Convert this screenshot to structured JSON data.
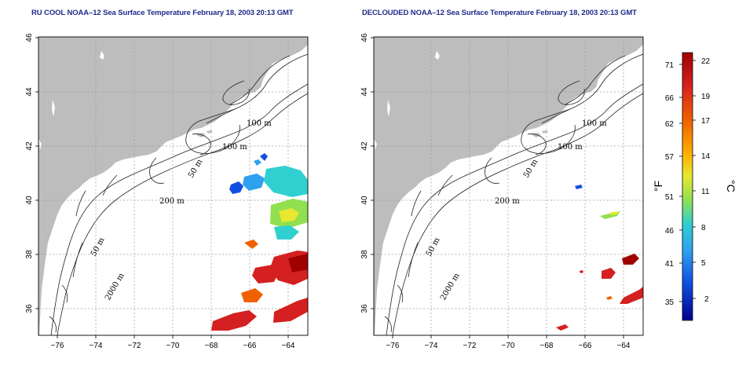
{
  "maps": [
    {
      "title": "RU COOL NOAA–12 Sea Surface Temperature February 18, 2003 20:13 GMT",
      "contour_labels": [
        "100 m",
        "100 m",
        "50 m",
        "200 m",
        "50 m",
        "2000 m"
      ]
    },
    {
      "title": "DECLOUDED NOAA–12 Sea Surface Temperature February 18, 2003 20:13 GMT",
      "contour_labels": [
        "100 m",
        "100 m",
        "50 m",
        "200 m",
        "50 m",
        "2000 m"
      ]
    }
  ],
  "axes": {
    "lon_ticks": [
      "−76",
      "−74",
      "−72",
      "−70",
      "−68",
      "−66",
      "−64"
    ],
    "lat_ticks": [
      "36",
      "38",
      "40",
      "42",
      "44",
      "46"
    ],
    "lon_range": [
      -77,
      -63
    ],
    "lat_range": [
      35,
      46
    ],
    "grid": "dotted"
  },
  "colorbar": {
    "fahrenheit_label": "°F",
    "celsius_label": "°C",
    "fahrenheit_ticks": [
      "71",
      "66",
      "62",
      "57",
      "51",
      "46",
      "41",
      "35"
    ],
    "celsius_ticks": [
      "22",
      "19",
      "17",
      "14",
      "11",
      "8",
      "5",
      "2"
    ],
    "colors": [
      "#a00000",
      "#d42020",
      "#f06000",
      "#ffb000",
      "#e8e830",
      "#90e050",
      "#30d0d0",
      "#30a0f0",
      "#1050e0",
      "#000090"
    ]
  },
  "colors": {
    "land": "#bdbdbd",
    "title": "#1f2a8a",
    "grid": "#9a9a9a"
  }
}
